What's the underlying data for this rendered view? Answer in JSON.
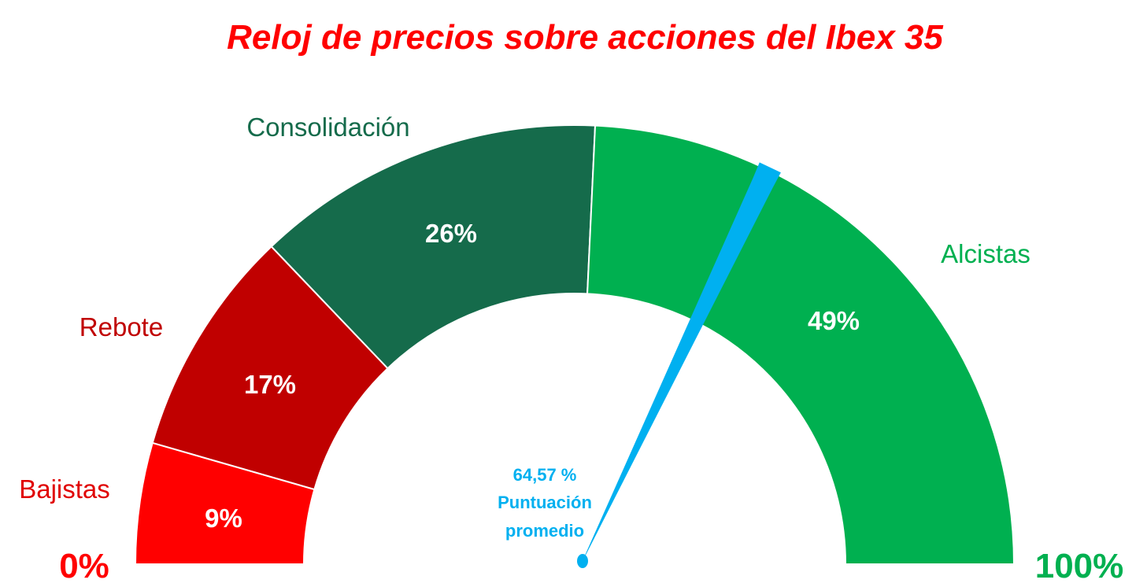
{
  "chart_data": {
    "type": "gauge",
    "title": "Reloj de precios sobre acciones del Ibex 35",
    "range": [
      0,
      100
    ],
    "range_labels": {
      "min": "0%",
      "max": "100%"
    },
    "segments": [
      {
        "name": "Bajistas",
        "value": 9,
        "label": "9%",
        "color": "#ff0000",
        "label_color": "#e00000"
      },
      {
        "name": "Rebote",
        "value": 17,
        "label": "17%",
        "color": "#c00000",
        "label_color": "#c00000"
      },
      {
        "name": "Consolidación",
        "value": 26,
        "label": "26%",
        "color": "#156b4b",
        "label_color": "#156b4b"
      },
      {
        "name": "Alcistas",
        "value": 49,
        "label": "49%",
        "color": "#00b050",
        "label_color": "#00b050"
      }
    ],
    "needle": {
      "value": 64.57,
      "value_text": "64,57 %",
      "label_line1": "Puntuación",
      "label_line2": "promedio",
      "color": "#00b0f0"
    },
    "colors": {
      "title": "#ff0000",
      "min_label": "#ff0000",
      "max_label": "#00b050"
    }
  }
}
